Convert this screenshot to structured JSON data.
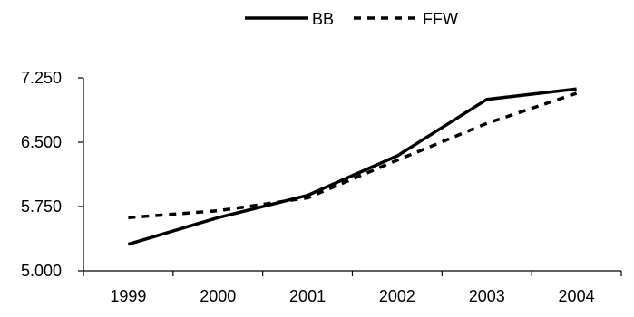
{
  "chart_data": {
    "type": "line",
    "categories": [
      "1999",
      "2000",
      "2001",
      "2002",
      "2003",
      "2004"
    ],
    "series": [
      {
        "name": "BB",
        "values": [
          5.31,
          5.62,
          5.88,
          6.34,
          7.0,
          7.12
        ],
        "line_style": "solid",
        "color": "#000000"
      },
      {
        "name": "FFW",
        "values": [
          5.62,
          5.7,
          5.85,
          6.29,
          6.72,
          7.07
        ],
        "line_style": "dashed",
        "color": "#000000"
      }
    ],
    "y_ticks": [
      "5.000",
      "5.750",
      "6.500",
      "7.250"
    ],
    "ylim": [
      5.0,
      7.25
    ],
    "grid": false,
    "legend_position": "top"
  }
}
